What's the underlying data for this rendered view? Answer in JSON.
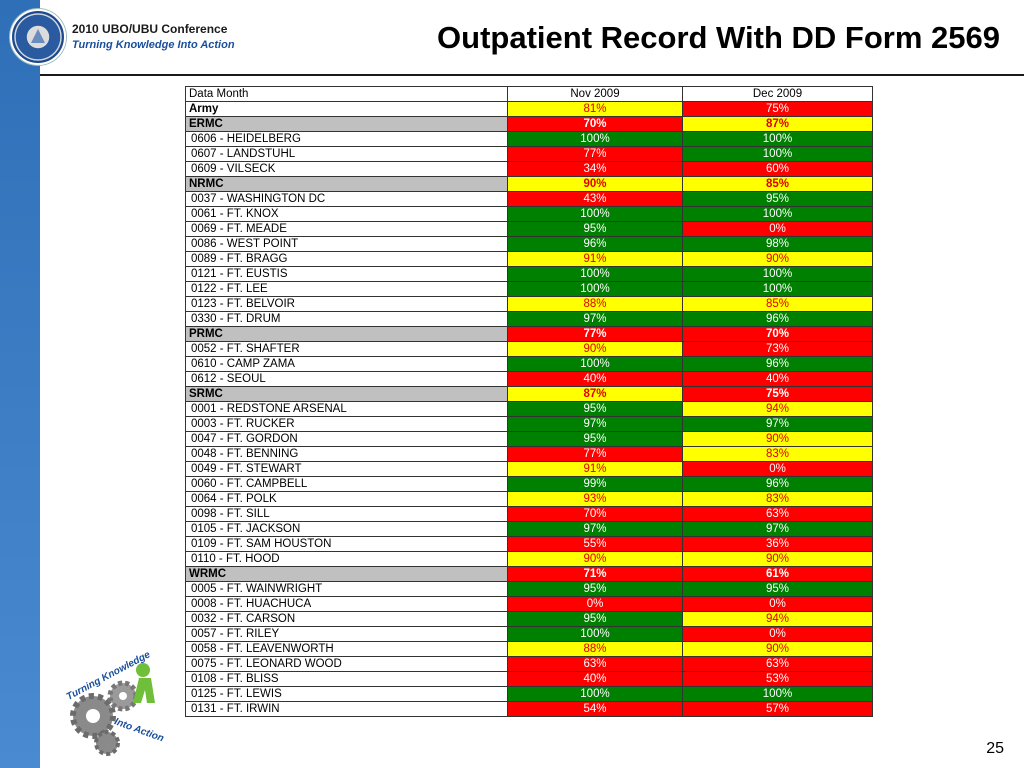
{
  "header": {
    "conference": "2010 UBO/UBU Conference",
    "tagline": "Turning Knowledge Into Action",
    "title": "Outpatient Record With DD Form 2569"
  },
  "colors": {
    "green": "#008000",
    "yellow": "#ffff00",
    "red": "#ff0000",
    "region_gray": "#c0c0c0",
    "brand_blue": "#2e6fb7"
  },
  "table": {
    "columns": [
      "Data Month",
      "Nov 2009",
      "Dec 2009"
    ],
    "rows": [
      {
        "type": "army",
        "name": "Army",
        "nov": "81%",
        "nov_c": "y",
        "dec": "75%",
        "dec_c": "r"
      },
      {
        "type": "region",
        "name": "ERMC",
        "nov": "70%",
        "nov_c": "r",
        "dec": "87%",
        "dec_c": "y"
      },
      {
        "type": "site",
        "name": "0606 - HEIDELBERG",
        "nov": "100%",
        "nov_c": "g",
        "dec": "100%",
        "dec_c": "g"
      },
      {
        "type": "site",
        "name": "0607 - LANDSTUHL",
        "nov": "77%",
        "nov_c": "r",
        "dec": "100%",
        "dec_c": "g"
      },
      {
        "type": "site",
        "name": "0609 - VILSECK",
        "nov": "34%",
        "nov_c": "r",
        "dec": "60%",
        "dec_c": "r"
      },
      {
        "type": "region",
        "name": "NRMC",
        "nov": "90%",
        "nov_c": "y",
        "dec": "85%",
        "dec_c": "y"
      },
      {
        "type": "site",
        "name": "0037 - WASHINGTON DC",
        "nov": "43%",
        "nov_c": "r",
        "dec": "95%",
        "dec_c": "g"
      },
      {
        "type": "site",
        "name": "0061 - FT. KNOX",
        "nov": "100%",
        "nov_c": "g",
        "dec": "100%",
        "dec_c": "g"
      },
      {
        "type": "site",
        "name": "0069 - FT. MEADE",
        "nov": "95%",
        "nov_c": "g",
        "dec": "0%",
        "dec_c": "r"
      },
      {
        "type": "site",
        "name": "0086 - WEST POINT",
        "nov": "96%",
        "nov_c": "g",
        "dec": "98%",
        "dec_c": "g"
      },
      {
        "type": "site",
        "name": "0089 - FT. BRAGG",
        "nov": "91%",
        "nov_c": "y",
        "dec": "90%",
        "dec_c": "y"
      },
      {
        "type": "site",
        "name": "0121 - FT. EUSTIS",
        "nov": "100%",
        "nov_c": "g",
        "dec": "100%",
        "dec_c": "g"
      },
      {
        "type": "site",
        "name": "0122 - FT. LEE",
        "nov": "100%",
        "nov_c": "g",
        "dec": "100%",
        "dec_c": "g"
      },
      {
        "type": "site",
        "name": "0123 - FT. BELVOIR",
        "nov": "88%",
        "nov_c": "y",
        "dec": "85%",
        "dec_c": "y"
      },
      {
        "type": "site",
        "name": "0330 - FT. DRUM",
        "nov": "97%",
        "nov_c": "g",
        "dec": "96%",
        "dec_c": "g"
      },
      {
        "type": "region",
        "name": "PRMC",
        "nov": "77%",
        "nov_c": "r",
        "dec": "70%",
        "dec_c": "r"
      },
      {
        "type": "site",
        "name": "0052 - FT. SHAFTER",
        "nov": "90%",
        "nov_c": "y",
        "dec": "73%",
        "dec_c": "r"
      },
      {
        "type": "site",
        "name": "0610 - CAMP ZAMA",
        "nov": "100%",
        "nov_c": "g",
        "dec": "96%",
        "dec_c": "g"
      },
      {
        "type": "site",
        "name": "0612 - SEOUL",
        "nov": "40%",
        "nov_c": "r",
        "dec": "40%",
        "dec_c": "r"
      },
      {
        "type": "region",
        "name": "SRMC",
        "nov": "87%",
        "nov_c": "y",
        "dec": "75%",
        "dec_c": "r"
      },
      {
        "type": "site",
        "name": "0001 - REDSTONE ARSENAL",
        "nov": "95%",
        "nov_c": "g",
        "dec": "94%",
        "dec_c": "y"
      },
      {
        "type": "site",
        "name": "0003 - FT. RUCKER",
        "nov": "97%",
        "nov_c": "g",
        "dec": "97%",
        "dec_c": "g"
      },
      {
        "type": "site",
        "name": "0047 - FT. GORDON",
        "nov": "95%",
        "nov_c": "g",
        "dec": "90%",
        "dec_c": "y"
      },
      {
        "type": "site",
        "name": "0048 - FT. BENNING",
        "nov": "77%",
        "nov_c": "r",
        "dec": "83%",
        "dec_c": "y"
      },
      {
        "type": "site",
        "name": "0049 - FT. STEWART",
        "nov": "91%",
        "nov_c": "y",
        "dec": "0%",
        "dec_c": "r"
      },
      {
        "type": "site",
        "name": "0060 - FT. CAMPBELL",
        "nov": "99%",
        "nov_c": "g",
        "dec": "96%",
        "dec_c": "g"
      },
      {
        "type": "site",
        "name": "0064 - FT. POLK",
        "nov": "93%",
        "nov_c": "y",
        "dec": "83%",
        "dec_c": "y"
      },
      {
        "type": "site",
        "name": "0098 - FT. SILL",
        "nov": "70%",
        "nov_c": "r",
        "dec": "63%",
        "dec_c": "r"
      },
      {
        "type": "site",
        "name": "0105 - FT. JACKSON",
        "nov": "97%",
        "nov_c": "g",
        "dec": "97%",
        "dec_c": "g"
      },
      {
        "type": "site",
        "name": "0109 - FT. SAM HOUSTON",
        "nov": "55%",
        "nov_c": "r",
        "dec": "36%",
        "dec_c": "r"
      },
      {
        "type": "site",
        "name": "0110 - FT. HOOD",
        "nov": "90%",
        "nov_c": "y",
        "dec": "90%",
        "dec_c": "y"
      },
      {
        "type": "region",
        "name": "WRMC",
        "nov": "71%",
        "nov_c": "r",
        "dec": "61%",
        "dec_c": "r"
      },
      {
        "type": "site",
        "name": "0005 - FT. WAINWRIGHT",
        "nov": "95%",
        "nov_c": "g",
        "dec": "95%",
        "dec_c": "g"
      },
      {
        "type": "site",
        "name": "0008 - FT. HUACHUCA",
        "nov": "0%",
        "nov_c": "r",
        "dec": "0%",
        "dec_c": "r"
      },
      {
        "type": "site",
        "name": "0032 - FT. CARSON",
        "nov": "95%",
        "nov_c": "g",
        "dec": "94%",
        "dec_c": "y"
      },
      {
        "type": "site",
        "name": "0057 - FT. RILEY",
        "nov": "100%",
        "nov_c": "g",
        "dec": "0%",
        "dec_c": "r"
      },
      {
        "type": "site",
        "name": "0058 - FT. LEAVENWORTH",
        "nov": "88%",
        "nov_c": "y",
        "dec": "90%",
        "dec_c": "y"
      },
      {
        "type": "site",
        "name": "0075 - FT. LEONARD WOOD",
        "nov": "63%",
        "nov_c": "r",
        "dec": "63%",
        "dec_c": "r"
      },
      {
        "type": "site",
        "name": "0108 - FT. BLISS",
        "nov": "40%",
        "nov_c": "r",
        "dec": "53%",
        "dec_c": "r"
      },
      {
        "type": "site",
        "name": "0125 - FT. LEWIS",
        "nov": "100%",
        "nov_c": "g",
        "dec": "100%",
        "dec_c": "g"
      },
      {
        "type": "site",
        "name": "0131 - FT. IRWIN",
        "nov": "54%",
        "nov_c": "r",
        "dec": "57%",
        "dec_c": "r"
      }
    ]
  },
  "logo": {
    "line1": "Turning Knowledge",
    "line2": "Into Action"
  },
  "page_number": "25"
}
